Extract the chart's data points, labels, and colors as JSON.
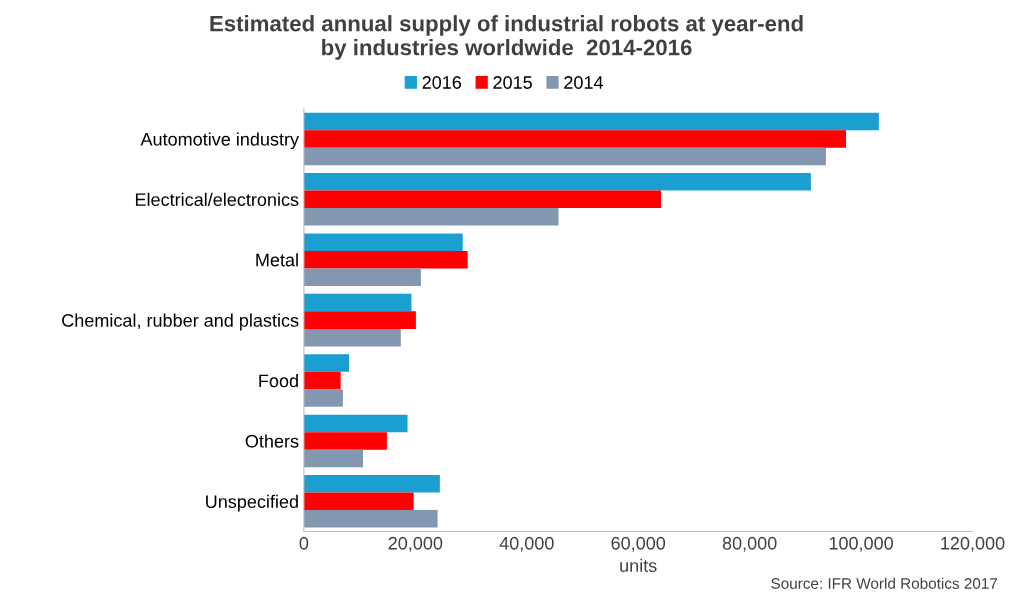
{
  "chart_data": {
    "type": "bar",
    "orientation": "horizontal",
    "title": "Estimated annual supply of industrial robots at year-end\nby industries worldwide  2014-2016",
    "categories": [
      "Automotive industry",
      "Electrical/electronics",
      "Metal",
      "Chemical, rubber and plastics",
      "Food",
      "Others",
      "Unspecified"
    ],
    "series": [
      {
        "name": "2016",
        "color": "#1a9fd0",
        "values": [
          103200,
          91000,
          28500,
          19300,
          8100,
          18600,
          24400
        ]
      },
      {
        "name": "2015",
        "color": "#ff0000",
        "values": [
          97300,
          64100,
          29400,
          20100,
          6600,
          14900,
          19700
        ]
      },
      {
        "name": "2014",
        "color": "#8497b0",
        "values": [
          93700,
          45700,
          21000,
          17400,
          7000,
          10600,
          24000
        ]
      }
    ],
    "xlim": [
      0,
      120000
    ],
    "xticks": [
      {
        "value": 0,
        "label": "0"
      },
      {
        "value": 20000,
        "label": "20,000"
      },
      {
        "value": 40000,
        "label": "40,000"
      },
      {
        "value": 60000,
        "label": "60,000"
      },
      {
        "value": 80000,
        "label": "80,000"
      },
      {
        "value": 100000,
        "label": "100,000"
      },
      {
        "value": 120000,
        "label": "120,000"
      }
    ],
    "xlabel": "units",
    "annotations": [
      "Source: IFR World Robotics 2017"
    ],
    "legend": "top",
    "grid": false
  }
}
